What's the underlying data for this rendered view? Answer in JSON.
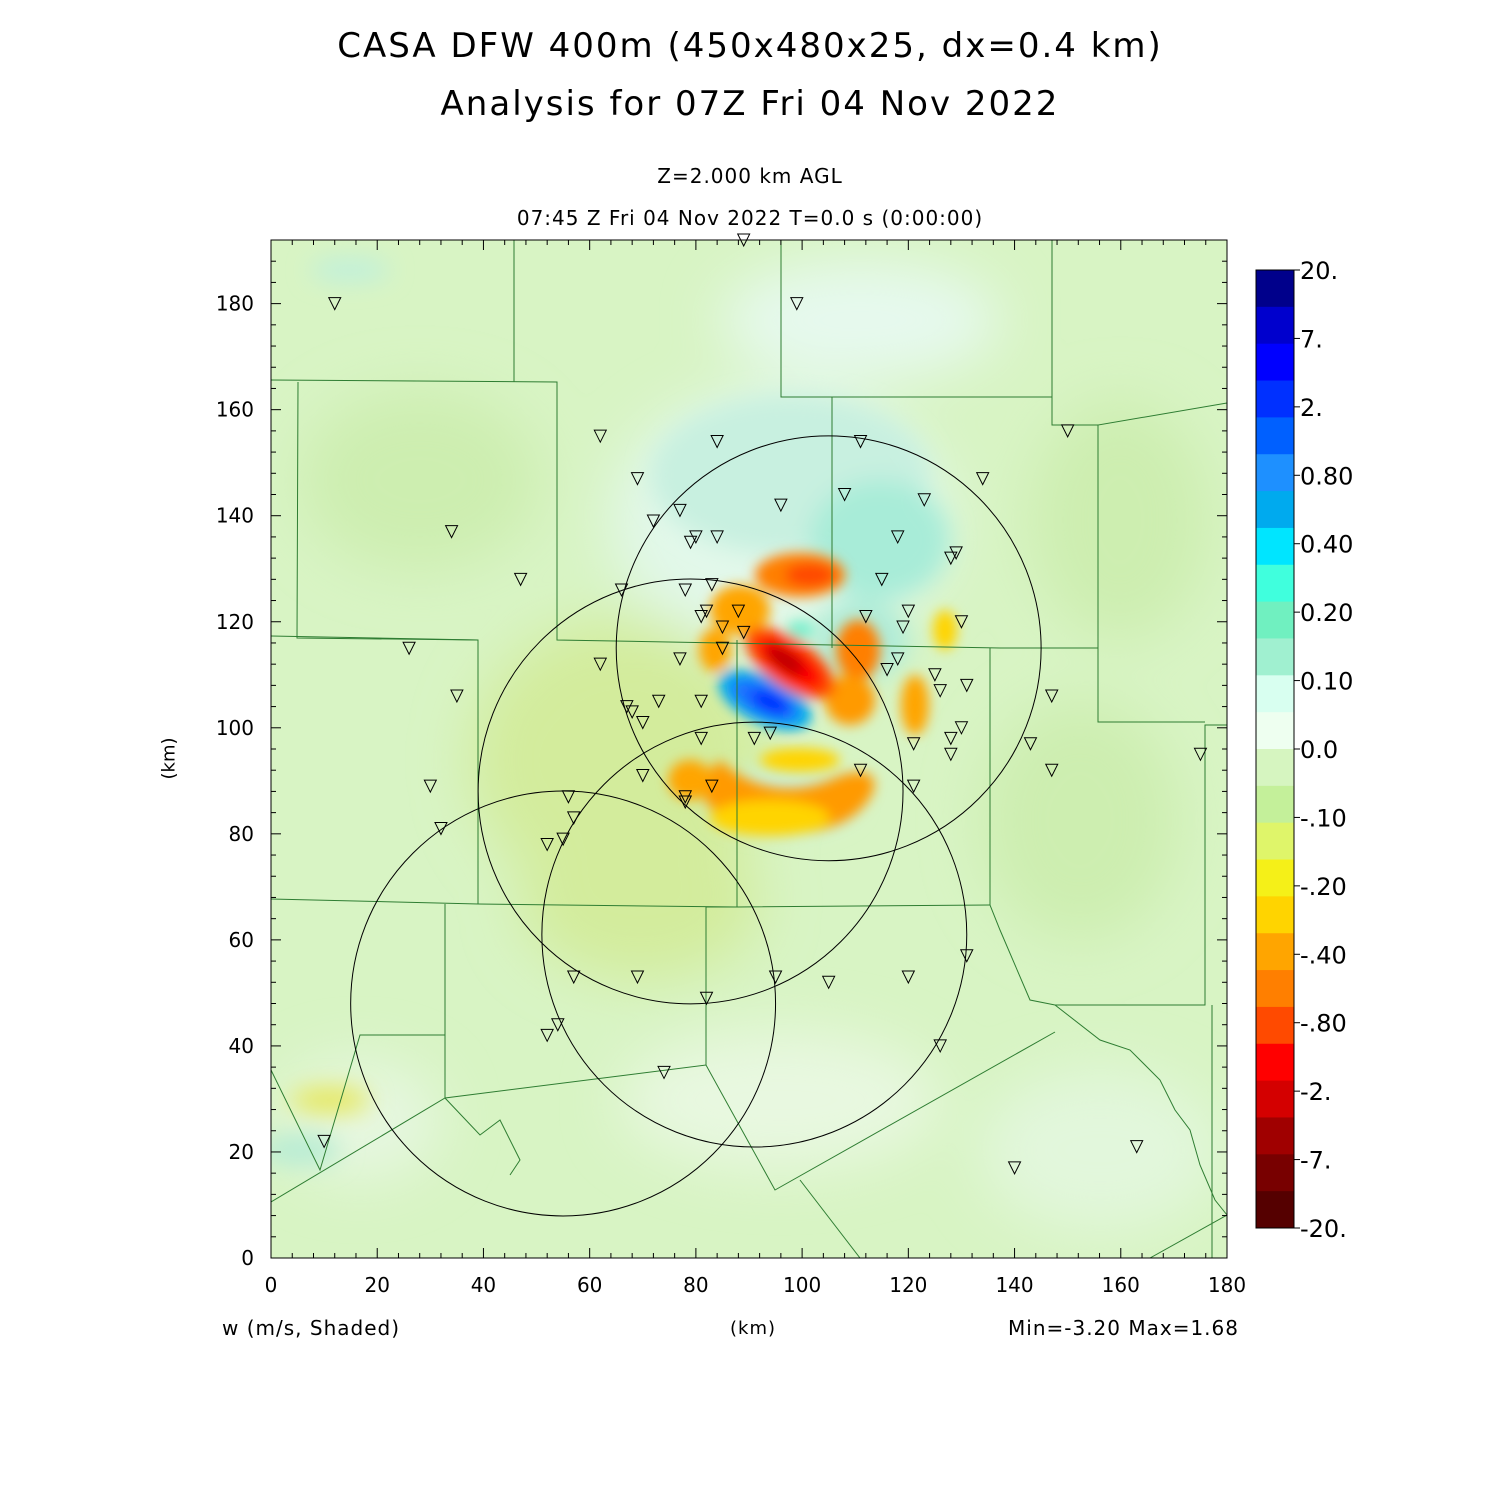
{
  "header": {
    "title_line1": "CASA DFW 400m (450x480x25, dx=0.4 km)",
    "title_line2": "Analysis for 07Z Fri 04 Nov 2022",
    "level": "Z=2.000 km AGL",
    "time": "07:45 Z Fri 04 Nov 2022    T=0.0 s (0:00:00)"
  },
  "footer": {
    "variable": "w (m/s, Shaded)",
    "xaxis_unit": "(km)",
    "minmax": "Min=-3.20 Max=1.68"
  },
  "yaxis_unit": "(km)",
  "axes": {
    "xticks": [
      "0",
      "20",
      "40",
      "60",
      "80",
      "100",
      "120",
      "140",
      "160",
      "180"
    ],
    "yticks": [
      "0",
      "20",
      "40",
      "60",
      "80",
      "100",
      "120",
      "140",
      "160",
      "180"
    ],
    "xlim": [
      0,
      180
    ],
    "ylim": [
      0,
      192
    ]
  },
  "colorbar": {
    "labels": [
      "20.",
      "7.",
      "2.",
      "0.80",
      "0.40",
      "0.20",
      "0.10",
      "0.0",
      "-.10",
      "-.20",
      "-.40",
      "-.80",
      "-2.",
      "-7.",
      "-20."
    ],
    "colors": [
      "#00008b",
      "#0000cd",
      "#0000ff",
      "#0030ff",
      "#0060ff",
      "#1e90ff",
      "#00aaee",
      "#00e5ff",
      "#40ffdd",
      "#70f0c0",
      "#a0f0d0",
      "#d8fff0",
      "#eefff0",
      "#d6f5c0",
      "#c4f09a",
      "#dff56a",
      "#f5f018",
      "#ffd400",
      "#ffa500",
      "#ff7f00",
      "#ff4a00",
      "#ff0000",
      "#d40000",
      "#a00000",
      "#780000",
      "#550000"
    ]
  },
  "radar_sites": [
    {
      "x": 105,
      "y": 115,
      "r": 40
    },
    {
      "x": 79,
      "y": 88,
      "r": 40
    },
    {
      "x": 91,
      "y": 61,
      "r": 40
    },
    {
      "x": 55,
      "y": 48,
      "r": 40
    }
  ],
  "stations": [
    [
      12,
      180
    ],
    [
      89,
      192
    ],
    [
      99,
      180
    ],
    [
      62,
      155
    ],
    [
      84,
      154
    ],
    [
      111,
      154
    ],
    [
      150,
      156
    ],
    [
      69,
      147
    ],
    [
      134,
      147
    ],
    [
      108,
      144
    ],
    [
      72,
      139
    ],
    [
      77,
      141
    ],
    [
      96,
      142
    ],
    [
      34,
      137
    ],
    [
      80,
      136
    ],
    [
      79,
      135
    ],
    [
      84,
      136
    ],
    [
      118,
      136
    ],
    [
      123,
      143
    ],
    [
      128,
      132
    ],
    [
      129,
      133
    ],
    [
      47,
      128
    ],
    [
      66,
      126
    ],
    [
      78,
      126
    ],
    [
      83,
      127
    ],
    [
      115,
      128
    ],
    [
      88,
      122
    ],
    [
      82,
      122
    ],
    [
      81,
      121
    ],
    [
      112,
      121
    ],
    [
      120,
      122
    ],
    [
      119,
      119
    ],
    [
      85,
      119
    ],
    [
      89,
      118
    ],
    [
      130,
      120
    ],
    [
      26,
      115
    ],
    [
      85,
      115
    ],
    [
      62,
      112
    ],
    [
      77,
      113
    ],
    [
      116,
      111
    ],
    [
      118,
      113
    ],
    [
      35,
      106
    ],
    [
      67,
      104
    ],
    [
      68,
      103
    ],
    [
      73,
      105
    ],
    [
      81,
      105
    ],
    [
      125,
      110
    ],
    [
      126,
      107
    ],
    [
      131,
      108
    ],
    [
      147,
      106
    ],
    [
      70,
      101
    ],
    [
      81,
      98
    ],
    [
      91,
      98
    ],
    [
      94,
      99
    ],
    [
      121,
      97
    ],
    [
      128,
      98
    ],
    [
      130,
      100
    ],
    [
      143,
      97
    ],
    [
      175,
      95
    ],
    [
      30,
      89
    ],
    [
      70,
      91
    ],
    [
      83,
      89
    ],
    [
      78,
      87
    ],
    [
      78,
      86
    ],
    [
      111,
      92
    ],
    [
      121,
      89
    ],
    [
      128,
      95
    ],
    [
      147,
      92
    ],
    [
      56,
      87
    ],
    [
      57,
      83
    ],
    [
      55,
      79
    ],
    [
      52,
      78
    ],
    [
      32,
      81
    ],
    [
      57,
      53
    ],
    [
      69,
      53
    ],
    [
      82,
      49
    ],
    [
      95,
      53
    ],
    [
      105,
      52
    ],
    [
      120,
      53
    ],
    [
      131,
      57
    ],
    [
      54,
      44
    ],
    [
      52,
      42
    ],
    [
      126,
      40
    ],
    [
      74,
      35
    ],
    [
      10,
      22
    ],
    [
      140,
      17
    ],
    [
      163,
      21
    ]
  ],
  "anomalies": [
    {
      "x": 93,
      "y": 113,
      "v": -3.2
    },
    {
      "x": 91,
      "y": 105,
      "v": 1.68
    }
  ]
}
